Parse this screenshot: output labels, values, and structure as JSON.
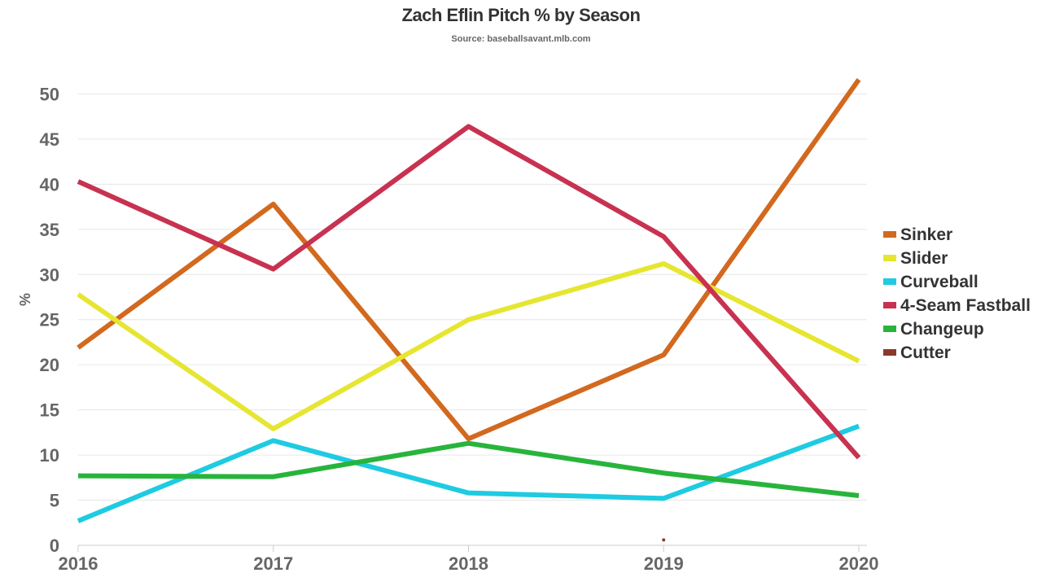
{
  "chart_data": {
    "type": "line",
    "title": "Zach Eflin Pitch % by Season",
    "subtitle": "Source: baseballsavant.mlb.com",
    "xlabel": "",
    "ylabel": "%",
    "x": [
      "2016",
      "2017",
      "2018",
      "2019",
      "2020"
    ],
    "ylim": [
      0,
      55
    ],
    "yticks": [
      0,
      5,
      10,
      15,
      20,
      25,
      30,
      35,
      40,
      45,
      50
    ],
    "grid": true,
    "legend_position": "right",
    "series": [
      {
        "name": "Sinker",
        "color": "#d2691e",
        "values": [
          21.9,
          37.8,
          11.8,
          21.1,
          51.6
        ]
      },
      {
        "name": "Slider",
        "color": "#e6e632",
        "values": [
          27.8,
          12.9,
          25.0,
          31.2,
          20.4
        ]
      },
      {
        "name": "Curveball",
        "color": "#1ecbe1",
        "values": [
          2.7,
          11.6,
          5.8,
          5.2,
          13.2
        ]
      },
      {
        "name": "4-Seam Fastball",
        "color": "#c83250",
        "values": [
          40.3,
          30.6,
          46.4,
          34.2,
          9.7
        ]
      },
      {
        "name": "Changeup",
        "color": "#28b43c",
        "values": [
          7.7,
          7.6,
          11.3,
          8.0,
          5.5
        ]
      },
      {
        "name": "Cutter",
        "color": "#8b3a2a",
        "values": [
          null,
          null,
          null,
          0.6,
          null
        ]
      }
    ]
  }
}
